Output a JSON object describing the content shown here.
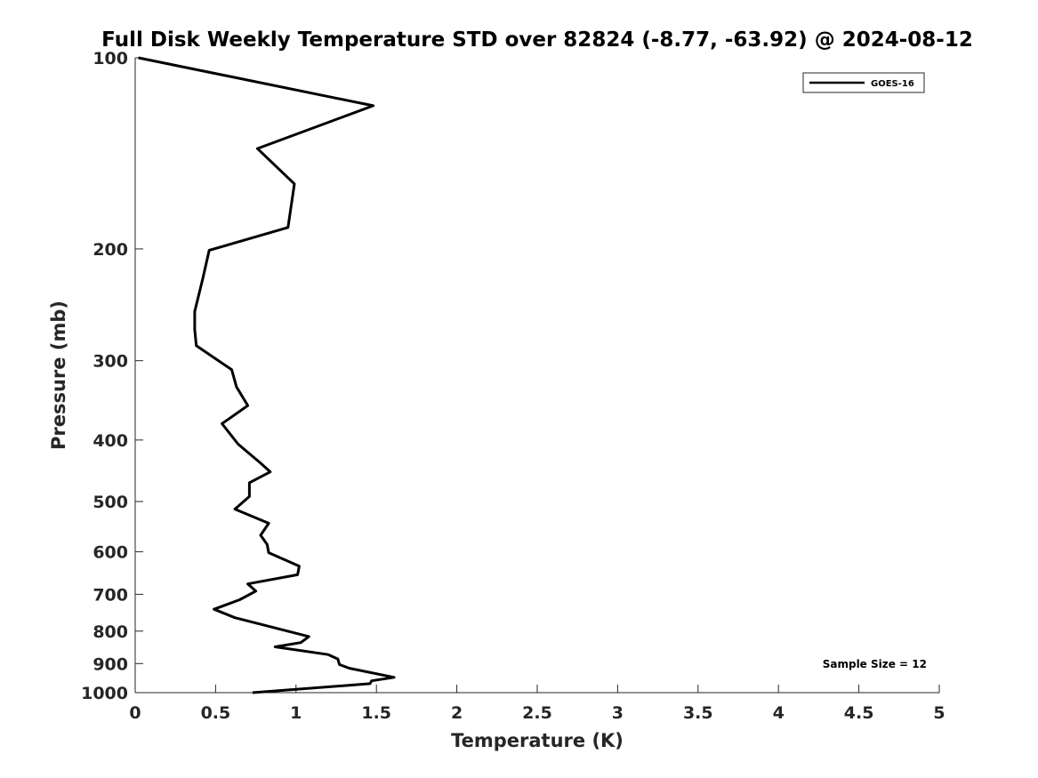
{
  "chart_data": {
    "type": "line",
    "title": "Full Disk Weekly Temperature STD over 82824 (-8.77, -63.92) @ 2024-08-12",
    "xlabel": "Temperature (K)",
    "ylabel": "Pressure (mb)",
    "xlim": [
      0,
      5
    ],
    "ylim": [
      100,
      1000
    ],
    "yscale": "log",
    "y_reversed": true,
    "grid": false,
    "legend_position": "top-right",
    "x_ticks": [
      0,
      0.5,
      1,
      1.5,
      2,
      2.5,
      3,
      3.5,
      4,
      4.5,
      5
    ],
    "x_tick_labels": [
      "0",
      "0.5",
      "1",
      "1.5",
      "2",
      "2.5",
      "3",
      "3.5",
      "4",
      "4.5",
      "5"
    ],
    "y_ticks": [
      100,
      200,
      300,
      400,
      500,
      600,
      700,
      800,
      900,
      1000
    ],
    "y_tick_labels": [
      "100",
      "200",
      "300",
      "400",
      "500",
      "600",
      "700",
      "800",
      "900",
      "1000"
    ],
    "series": [
      {
        "name": "GOES-16",
        "color": "#000000",
        "x": [
          0.02,
          1.48,
          0.76,
          0.99,
          0.95,
          0.46,
          0.42,
          0.37,
          0.37,
          0.38,
          0.6,
          0.63,
          0.7,
          0.54,
          0.64,
          0.78,
          0.84,
          0.71,
          0.71,
          0.62,
          0.83,
          0.78,
          0.82,
          0.83,
          1.02,
          1.01,
          0.7,
          0.75,
          0.65,
          0.49,
          0.62,
          1.08,
          1.03,
          0.87,
          1.2,
          1.26,
          1.27,
          1.33,
          1.61,
          1.47,
          1.46,
          0.73
        ],
        "y": [
          100,
          119,
          139,
          158,
          185,
          201,
          223,
          251,
          268,
          284,
          310,
          330,
          353,
          377,
          406,
          435,
          449,
          467,
          491,
          514,
          541,
          565,
          584,
          602,
          632,
          652,
          674,
          692,
          714,
          739,
          762,
          816,
          834,
          847,
          871,
          885,
          903,
          915,
          946,
          958,
          968,
          1000
        ]
      }
    ],
    "annotations": [
      "Sample Size = 12"
    ]
  }
}
